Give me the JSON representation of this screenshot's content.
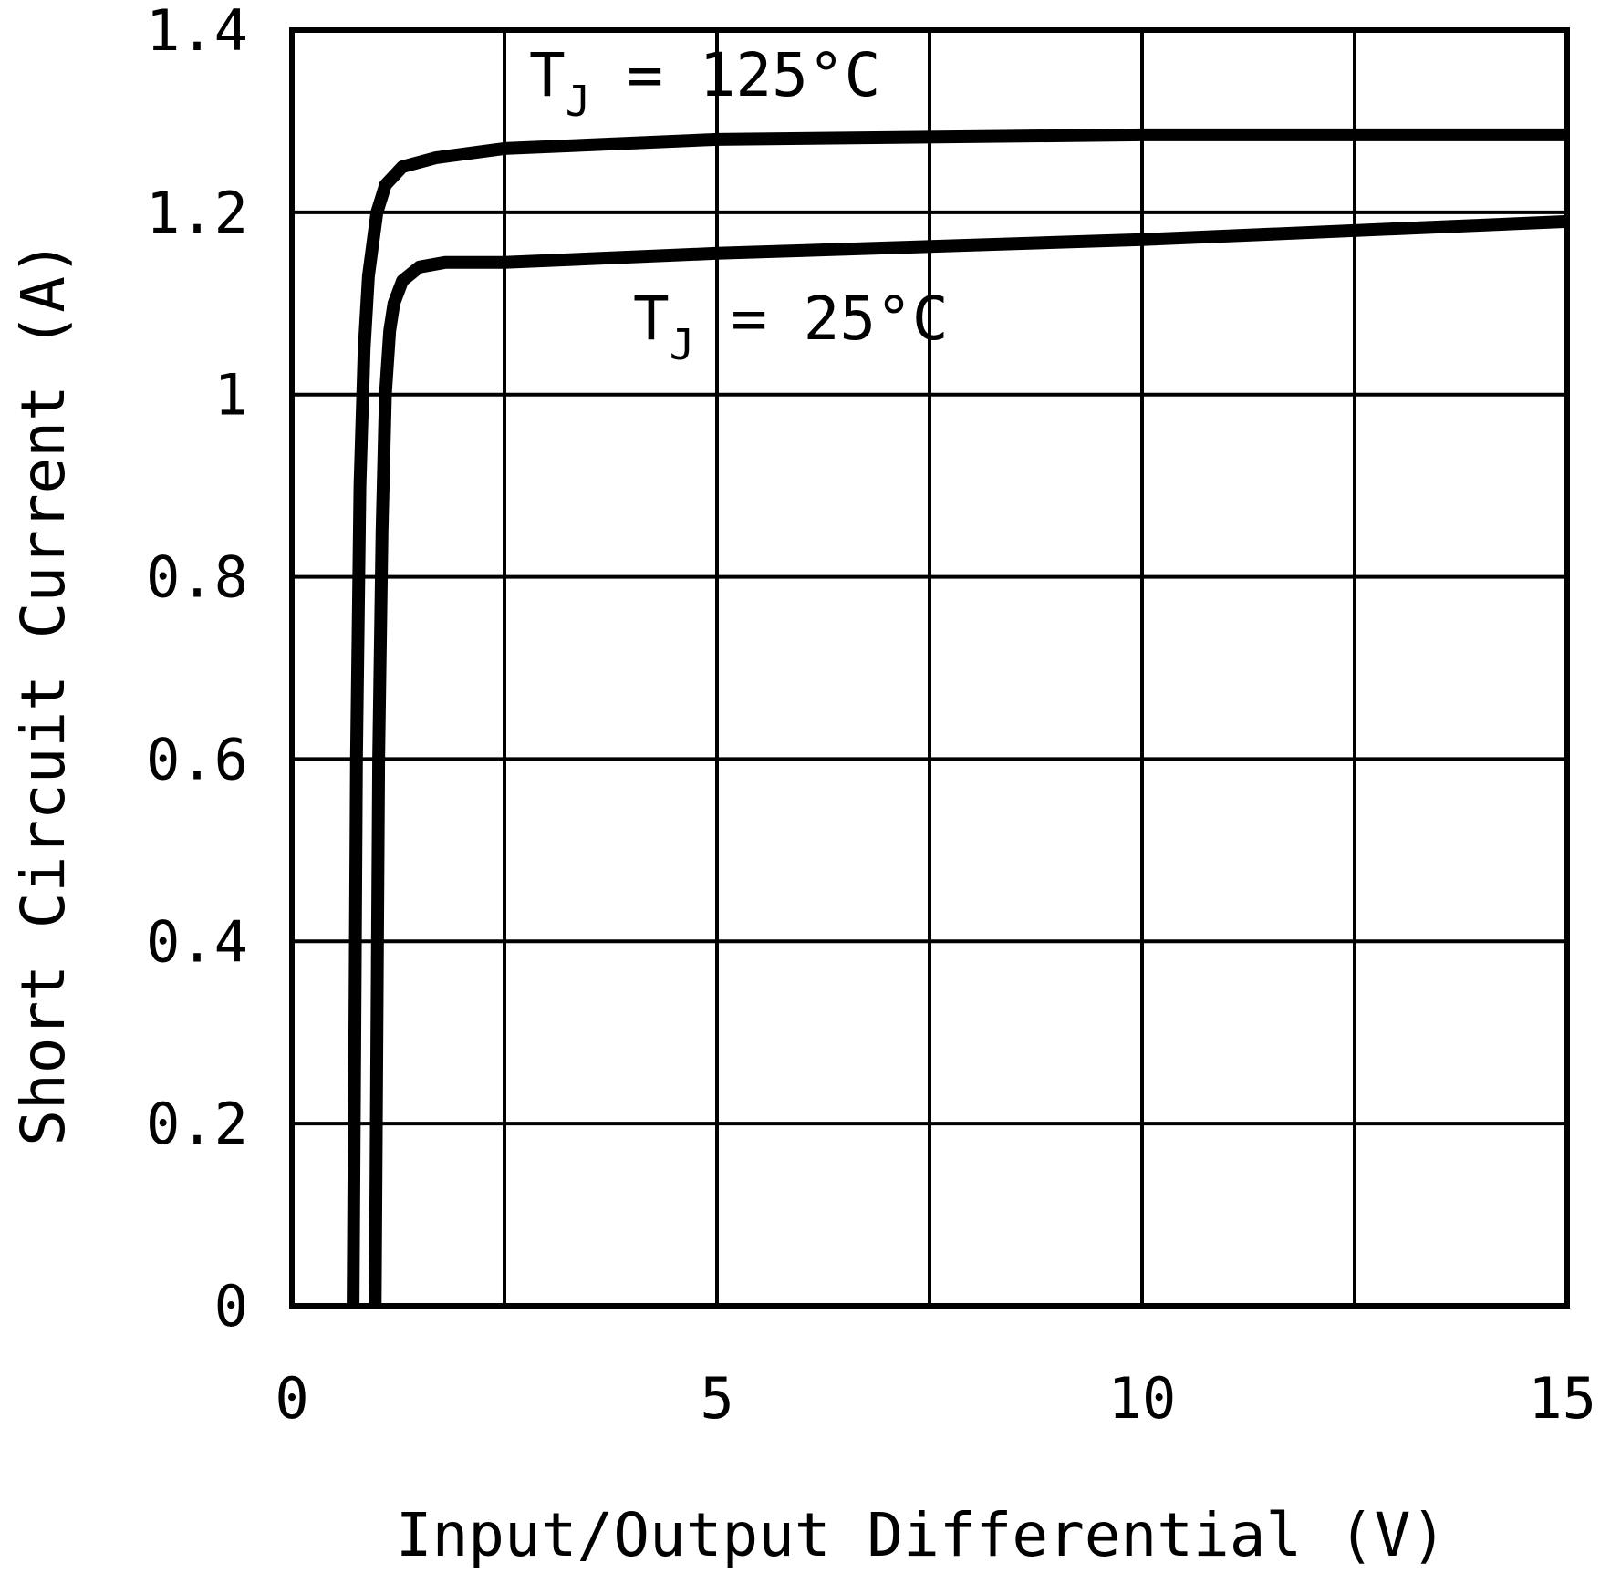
{
  "chart_data": {
    "type": "line",
    "title": "",
    "xlabel": "Input/Output Differential (V)",
    "ylabel": "Short Circuit Current (A)",
    "xlim": [
      0,
      15
    ],
    "ylim": [
      0,
      1.4
    ],
    "x_ticks": [
      0,
      5,
      10,
      15
    ],
    "x_tick_labels": [
      "0",
      "5",
      "10",
      "15"
    ],
    "y_ticks": [
      0,
      0.2,
      0.4,
      0.6,
      0.8,
      1,
      1.2,
      1.4
    ],
    "y_tick_labels": [
      "0",
      "0.2",
      "0.4",
      "0.6",
      "0.8",
      "1",
      "1.2",
      "1.4"
    ],
    "grid": true,
    "x_grid_step": 2.5,
    "y_grid_step": 0.2,
    "line_color": "#000000",
    "series": [
      {
        "name": "TJ = 125°C",
        "x": [
          0.72,
          0.74,
          0.76,
          0.8,
          0.85,
          0.9,
          1.0,
          1.1,
          1.3,
          1.7,
          2.5,
          5.0,
          10.0,
          15.0
        ],
        "y": [
          0,
          0.3,
          0.6,
          0.9,
          1.05,
          1.13,
          1.2,
          1.23,
          1.25,
          1.26,
          1.27,
          1.28,
          1.285,
          1.285
        ]
      },
      {
        "name": "TJ = 25°C",
        "x": [
          0.98,
          1.0,
          1.02,
          1.06,
          1.1,
          1.15,
          1.2,
          1.3,
          1.5,
          1.8,
          2.5,
          5.0,
          10.0,
          15.0
        ],
        "y": [
          0,
          0.3,
          0.6,
          0.85,
          1.0,
          1.07,
          1.1,
          1.125,
          1.14,
          1.145,
          1.145,
          1.155,
          1.17,
          1.19
        ]
      }
    ],
    "annotations": [
      {
        "main": "T",
        "sub": "J",
        "rest": " = 125°C",
        "series": "TJ = 125°C"
      },
      {
        "main": "T",
        "sub": "J",
        "rest": " = 25°C",
        "series": "TJ = 25°C"
      }
    ]
  }
}
